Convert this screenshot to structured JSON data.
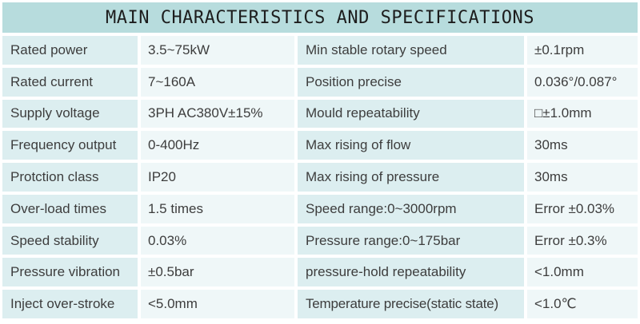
{
  "title": "MAIN CHARACTERISTICS AND SPECIFICATIONS",
  "colors": {
    "header_bg": "#b7dcdd",
    "label_cell_bg": "#dceef0",
    "value_cell_bg": "#eff7f8",
    "text": "#3d3d3d",
    "title_text": "#1d1d1d",
    "page_bg": "#ffffff"
  },
  "table": {
    "rows": [
      {
        "left_label": "Rated power",
        "left_value": "3.5~75kW",
        "right_label": "Min stable rotary speed",
        "right_value": "±0.1rpm"
      },
      {
        "left_label": "Rated current",
        "left_value": "7~160A",
        "right_label": "Position precise",
        "right_value": "0.036°/0.087°"
      },
      {
        "left_label": "Supply voltage",
        "left_value": "3PH AC380V±15%",
        "right_label": "Mould repeatability",
        "right_value": "□±1.0mm"
      },
      {
        "left_label": "Frequency output",
        "left_value": "0-400Hz",
        "right_label": "Max rising of flow",
        "right_value": "30ms"
      },
      {
        "left_label": "Protction class",
        "left_value": "IP20",
        "right_label": "Max rising of pressure",
        "right_value": "30ms"
      },
      {
        "left_label": "Over-load times",
        "left_value": "1.5 times",
        "right_label": "Speed range:0~3000rpm",
        "right_value": "Error ±0.03%"
      },
      {
        "left_label": "Speed stability",
        "left_value": "0.03%",
        "right_label": "Pressure range:0~175bar",
        "right_value": "Error ±0.3%"
      },
      {
        "left_label": "Pressure vibration",
        "left_value": "±0.5bar",
        "right_label": "pressure-hold repeatability",
        "right_value": "<1.0mm"
      },
      {
        "left_label": "Inject over-stroke",
        "left_value": "<5.0mm",
        "right_label": "Temperature precise(static state)",
        "right_value": "<1.0℃"
      }
    ]
  }
}
